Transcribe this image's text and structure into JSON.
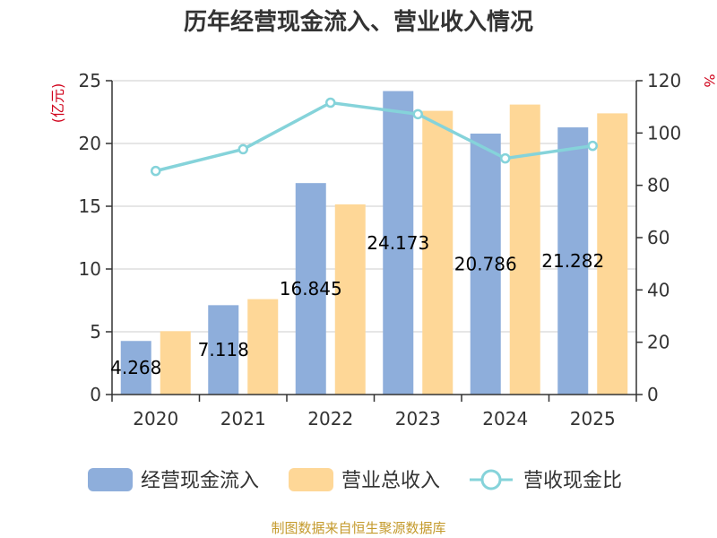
{
  "chart_data": {
    "type": "bar",
    "title": "历年经营现金流入、营业收入情况",
    "categories": [
      "2020",
      "2021",
      "2022",
      "2023",
      "2024",
      "2025"
    ],
    "left_unit": "(亿元)",
    "right_unit": "%",
    "y_left": {
      "min": 0,
      "max": 25,
      "ticks": [
        "0",
        "5",
        "10",
        "15",
        "20",
        "25"
      ]
    },
    "y_right": {
      "min": 0,
      "max": 120,
      "ticks": [
        "0",
        "20",
        "40",
        "60",
        "80",
        "100",
        "120"
      ]
    },
    "grid": true,
    "legend_position": "bottom",
    "series": [
      {
        "name": "经营现金流入",
        "type": "bar",
        "axis": "left",
        "color": "#8eaedb",
        "values": [
          4.268,
          7.118,
          16.845,
          24.173,
          20.786,
          21.282
        ],
        "labels": [
          "4.268",
          "7.118",
          "16.845",
          "24.173",
          "20.786",
          "21.282"
        ]
      },
      {
        "name": "营业总收入",
        "type": "bar",
        "axis": "left",
        "color": "#fed797",
        "values": [
          5.05,
          7.6,
          15.15,
          22.6,
          23.1,
          22.4
        ]
      },
      {
        "name": "营收现金比",
        "type": "line",
        "axis": "right",
        "color": "#85d3da",
        "values": [
          85.5,
          93.8,
          111.6,
          107.2,
          90.3,
          95.1
        ]
      }
    ]
  },
  "source": "制图数据来自恒生聚源数据库"
}
